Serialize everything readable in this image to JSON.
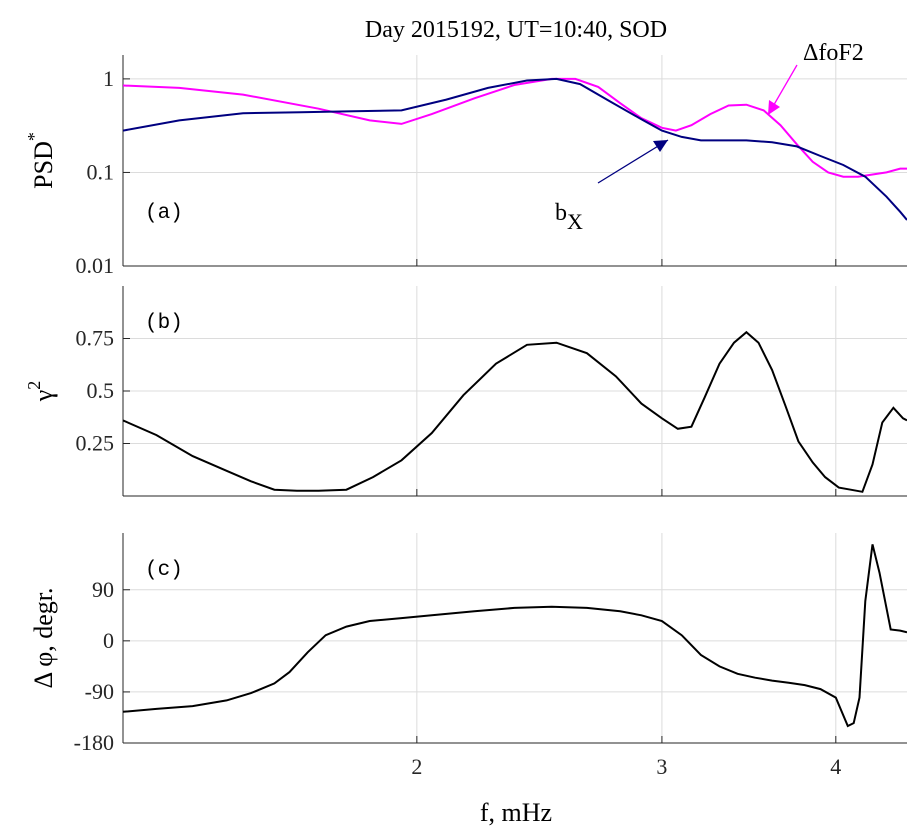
{
  "title": "Day 2015192, UT=10:40, SOD",
  "xlabel": "f, mHz",
  "x_ticks": [
    "2",
    "3",
    "4"
  ],
  "colors": {
    "dfoF2": "#ff00ff",
    "bx": "#000080",
    "black": "#000000"
  },
  "chart_data": [
    {
      "type": "line",
      "panel_tag": "(a)",
      "ylabel": "PSD",
      "ylabel_sup": "*",
      "yscale": "log",
      "ylim": [
        0.01,
        1.8
      ],
      "xlim": [
        1.23,
        4.5
      ],
      "xscale": "log",
      "y_ticks": [
        {
          "value": 0.01,
          "label": "0.01"
        },
        {
          "value": 0.1,
          "label": "0.1"
        },
        {
          "value": 1,
          "label": "1"
        }
      ],
      "annotations": {
        "dfoF2_label": "ΔfoF2",
        "bx_label_base": "b",
        "bx_label_sub": "X"
      },
      "series": [
        {
          "key": "dfoF2",
          "x": [
            1.23,
            1.35,
            1.5,
            1.7,
            1.85,
            1.95,
            2.05,
            2.2,
            2.35,
            2.5,
            2.6,
            2.7,
            2.8,
            2.9,
            3.0,
            3.07,
            3.15,
            3.25,
            3.35,
            3.45,
            3.55,
            3.65,
            3.75,
            3.85,
            3.95,
            4.05,
            4.15,
            4.25,
            4.35,
            4.45,
            4.5
          ],
          "values": [
            0.85,
            0.8,
            0.68,
            0.48,
            0.36,
            0.33,
            0.42,
            0.62,
            0.86,
            1.0,
            1.0,
            0.82,
            0.55,
            0.38,
            0.3,
            0.28,
            0.32,
            0.42,
            0.52,
            0.53,
            0.46,
            0.32,
            0.2,
            0.13,
            0.1,
            0.09,
            0.09,
            0.095,
            0.1,
            0.11,
            0.11
          ]
        },
        {
          "key": "bx",
          "x": [
            1.23,
            1.35,
            1.5,
            1.65,
            1.8,
            1.95,
            2.1,
            2.25,
            2.4,
            2.52,
            2.62,
            2.75,
            2.9,
            3.0,
            3.1,
            3.2,
            3.3,
            3.45,
            3.6,
            3.75,
            3.9,
            4.05,
            4.2,
            4.35,
            4.45,
            4.5
          ],
          "values": [
            0.28,
            0.36,
            0.43,
            0.44,
            0.45,
            0.46,
            0.6,
            0.8,
            0.96,
            1.0,
            0.88,
            0.58,
            0.37,
            0.28,
            0.24,
            0.22,
            0.22,
            0.22,
            0.21,
            0.19,
            0.15,
            0.12,
            0.09,
            0.055,
            0.038,
            0.031
          ]
        }
      ]
    },
    {
      "type": "line",
      "panel_tag": "(b)",
      "ylabel": "γ",
      "ylabel_sup": "2",
      "ylim": [
        0,
        1.0
      ],
      "xlim": [
        1.23,
        4.5
      ],
      "xscale": "log",
      "y_ticks": [
        {
          "value": 0.25,
          "label": "0.25"
        },
        {
          "value": 0.5,
          "label": "0.5"
        },
        {
          "value": 0.75,
          "label": "0.75"
        }
      ],
      "series": [
        {
          "key": "black",
          "x": [
            1.23,
            1.3,
            1.38,
            1.46,
            1.52,
            1.58,
            1.64,
            1.7,
            1.78,
            1.86,
            1.95,
            2.05,
            2.16,
            2.28,
            2.4,
            2.52,
            2.65,
            2.78,
            2.9,
            3.0,
            3.08,
            3.15,
            3.22,
            3.3,
            3.38,
            3.45,
            3.52,
            3.6,
            3.68,
            3.76,
            3.85,
            3.93,
            4.02,
            4.1,
            4.18,
            4.25,
            4.32,
            4.4,
            4.47,
            4.5
          ],
          "values": [
            0.36,
            0.29,
            0.19,
            0.12,
            0.07,
            0.03,
            0.025,
            0.025,
            0.03,
            0.09,
            0.17,
            0.3,
            0.48,
            0.63,
            0.72,
            0.73,
            0.68,
            0.57,
            0.44,
            0.37,
            0.32,
            0.33,
            0.47,
            0.63,
            0.73,
            0.78,
            0.73,
            0.6,
            0.43,
            0.26,
            0.16,
            0.09,
            0.04,
            0.03,
            0.02,
            0.15,
            0.35,
            0.42,
            0.37,
            0.36
          ]
        }
      ]
    },
    {
      "type": "line",
      "panel_tag": "(c)",
      "ylabel": "Δ φ, degr.",
      "ylim": [
        -180,
        190
      ],
      "xlim": [
        1.23,
        4.5
      ],
      "xscale": "log",
      "y_ticks": [
        {
          "value": -180,
          "label": "-180"
        },
        {
          "value": -90,
          "label": "-90"
        },
        {
          "value": 0,
          "label": "0"
        },
        {
          "value": 90,
          "label": "90"
        }
      ],
      "series": [
        {
          "key": "black",
          "x": [
            1.23,
            1.3,
            1.38,
            1.46,
            1.52,
            1.58,
            1.62,
            1.67,
            1.72,
            1.78,
            1.85,
            1.95,
            2.05,
            2.2,
            2.35,
            2.5,
            2.65,
            2.8,
            2.9,
            3.0,
            3.1,
            3.2,
            3.3,
            3.4,
            3.5,
            3.6,
            3.7,
            3.8,
            3.9,
            4.0,
            4.08,
            4.12,
            4.16,
            4.2,
            4.25,
            4.3,
            4.38,
            4.45,
            4.5
          ],
          "values": [
            -125,
            -120,
            -115,
            -105,
            -92,
            -75,
            -55,
            -20,
            10,
            25,
            35,
            40,
            45,
            52,
            58,
            60,
            58,
            52,
            45,
            35,
            10,
            -25,
            -45,
            -58,
            -65,
            -70,
            -74,
            -78,
            -85,
            -100,
            -150,
            -145,
            -100,
            70,
            170,
            120,
            20,
            18,
            15
          ]
        }
      ]
    }
  ]
}
